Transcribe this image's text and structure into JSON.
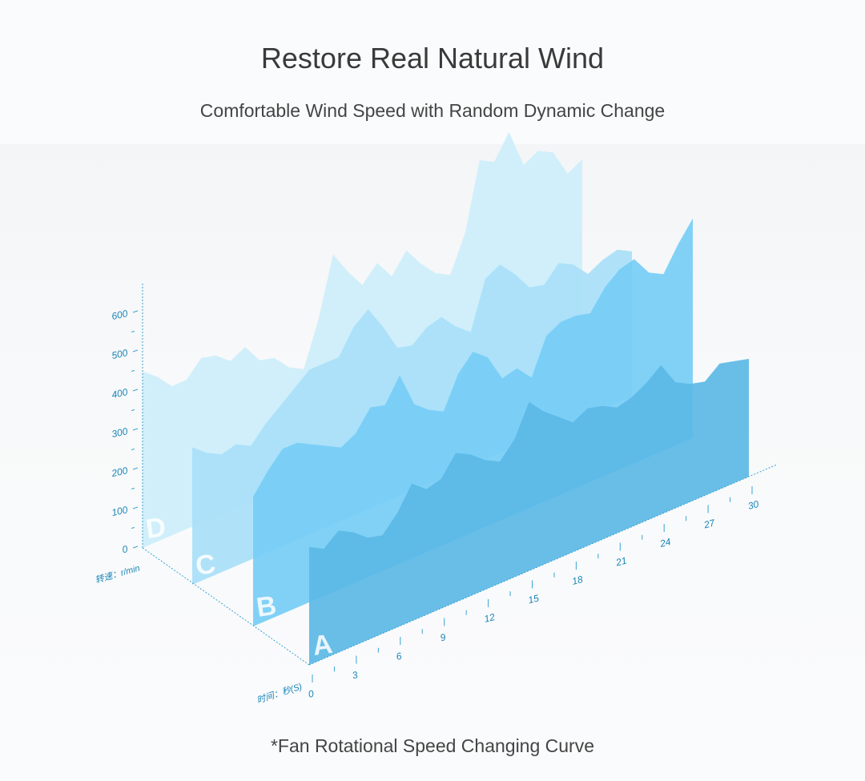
{
  "header": {
    "title": "Restore Real Natural Wind",
    "subtitle": "Comfortable Wind Speed with Random Dynamic Change"
  },
  "caption": "*Fan Rotational Speed Changing Curve",
  "chart_data": {
    "type": "area",
    "style": "3d-stacked-ridgeline",
    "ylabel": "转速：r/min",
    "xlabel": "时间：秒(S)",
    "y_ticks": [
      "0",
      "100",
      "200",
      "300",
      "400",
      "500",
      "600"
    ],
    "x_ticks": [
      "0",
      "3",
      "6",
      "9",
      "12",
      "15",
      "18",
      "21",
      "24",
      "27",
      "30"
    ],
    "ylim": [
      0,
      650
    ],
    "xlim": [
      0,
      30
    ],
    "grid": false,
    "colors": {
      "A": "#5bb8e5",
      "B": "#76cdf6",
      "C": "#a8dff8",
      "D": "#cdeefb",
      "axis": "#3aa3d4"
    },
    "series": [
      {
        "name": "A",
        "values": [
          300,
          280,
          310,
          290,
          260,
          250,
          290,
          350,
          320,
          330,
          380,
          360,
          330,
          310,
          350,
          430,
          390,
          360,
          330,
          350,
          340,
          320,
          330,
          350,
          380,
          320,
          300,
          290,
          320,
          310,
          300
        ]
      },
      {
        "name": "B",
        "values": [
          330,
          380,
          420,
          420,
          400,
          380,
          360,
          380,
          430,
          420,
          480,
          390,
          360,
          340,
          420,
          460,
          430,
          360,
          370,
          330,
          420,
          440,
          440,
          430,
          480,
          510,
          520,
          470,
          450,
          510,
          560
        ]
      },
      {
        "name": "C",
        "values": [
          350,
          320,
          300,
          310,
          290,
          330,
          360,
          390,
          420,
          420,
          420,
          480,
          510,
          450,
          380,
          370,
          400,
          410,
          370,
          340,
          460,
          480,
          440,
          390,
          380,
          420,
          400,
          360,
          380,
          390,
          370
        ]
      },
      {
        "name": "D",
        "values": [
          450,
          420,
          380,
          380,
          420,
          410,
          380,
          400,
          350,
          340,
          300,
          280,
          390,
          540,
          480,
          430,
          470,
          420,
          470,
          420,
          380,
          360,
          450,
          620,
          600,
          660,
          560,
          580,
          560,
          490,
          510
        ]
      }
    ]
  }
}
